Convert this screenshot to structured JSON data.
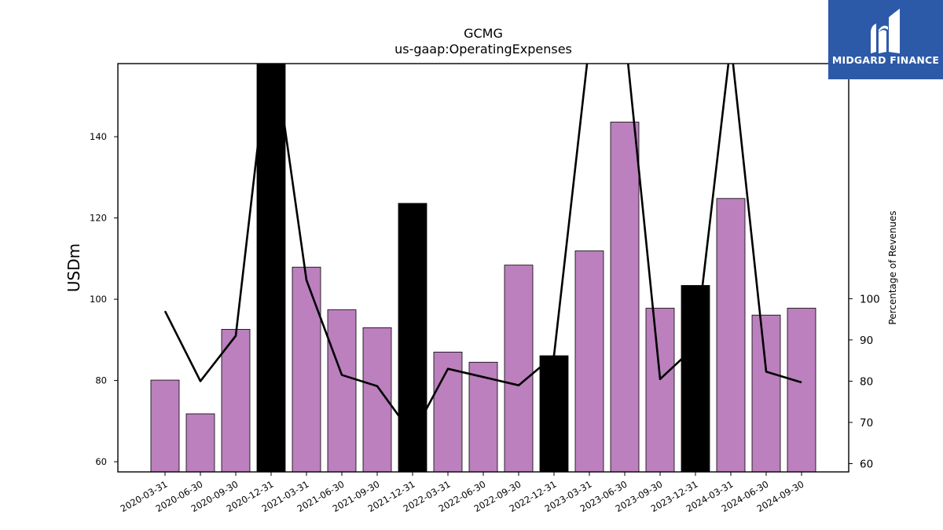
{
  "chart_data": {
    "type": "bar",
    "title": "GCMG",
    "subtitle": "us-gaap:OperatingExpenses",
    "ylabel": "USDm",
    "y2label": "Percentage of Revenues",
    "ylim": [
      57.5,
      158
    ],
    "y2lim": [
      58,
      157
    ],
    "yticks": [
      60,
      80,
      100,
      120,
      140
    ],
    "y2ticks": [
      60,
      70,
      80,
      90,
      100
    ],
    "categories": [
      "2020-03-31",
      "2020-06-30",
      "2020-09-30",
      "2020-12-31",
      "2021-03-31",
      "2021-06-30",
      "2021-09-30",
      "2021-12-31",
      "2022-03-31",
      "2022-06-30",
      "2022-09-30",
      "2022-12-31",
      "2023-03-31",
      "2023-06-30",
      "2023-09-30",
      "2023-12-31",
      "2024-03-31",
      "2024-06-30",
      "2024-09-30"
    ],
    "series": [
      {
        "type": "bar",
        "axis": "left",
        "values": [
          80.1,
          71.8,
          92.6,
          159,
          107.9,
          97.4,
          93.0,
          123.6,
          87.0,
          84.5,
          108.4,
          86.1,
          111.9,
          143.6,
          97.8,
          103.4,
          124.8,
          96.1,
          97.8
        ],
        "colors": [
          "#bb80bd",
          "#bb80bd",
          "#bb80bd",
          "#000000",
          "#bb80bd",
          "#bb80bd",
          "#bb80bd",
          "#000000",
          "#bb80bd",
          "#bb80bd",
          "#bb80bd",
          "#000000",
          "#bb80bd",
          "#bb80bd",
          "#bb80bd",
          "#000000",
          "#bb80bd",
          "#bb80bd",
          "#bb80bd"
        ]
      },
      {
        "type": "line",
        "axis": "right",
        "color": "#000000",
        "values": [
          97,
          80,
          91,
          165,
          104.5,
          81.5,
          78.8,
          67,
          83,
          81,
          79,
          86.2,
          162,
          165,
          80.5,
          88.5,
          162,
          82.3,
          79.7
        ]
      }
    ],
    "grid": false,
    "legend": "none"
  },
  "logo": {
    "text": "MIDGARD FINANCE",
    "background": "#2d5aa8"
  }
}
